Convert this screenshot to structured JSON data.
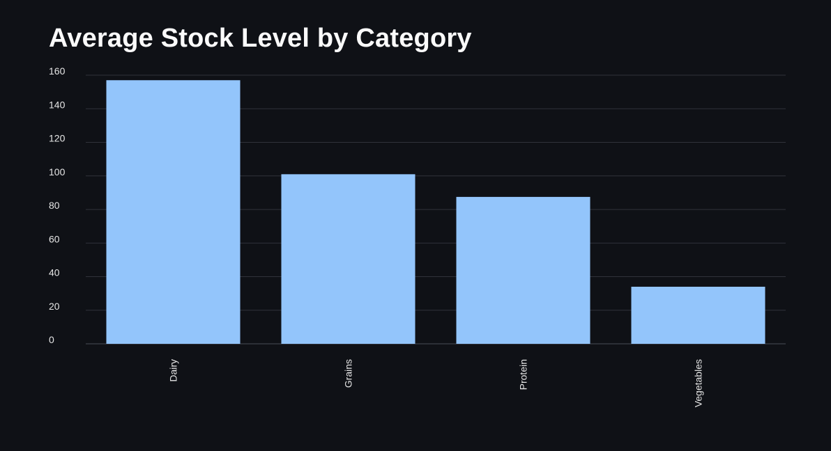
{
  "chart_data": {
    "type": "bar",
    "title": "Average Stock Level by Category",
    "categories": [
      "Dairy",
      "Grains",
      "Protein",
      "Vegetables"
    ],
    "values": [
      157,
      101,
      87.5,
      34
    ],
    "ylim": [
      0,
      160
    ],
    "yticks": [
      0,
      20,
      40,
      60,
      80,
      100,
      120,
      140,
      160
    ],
    "xlabel": "",
    "ylabel": "",
    "grid": true,
    "bar_color": "#93c5fb",
    "background_color": "#0f1116"
  }
}
